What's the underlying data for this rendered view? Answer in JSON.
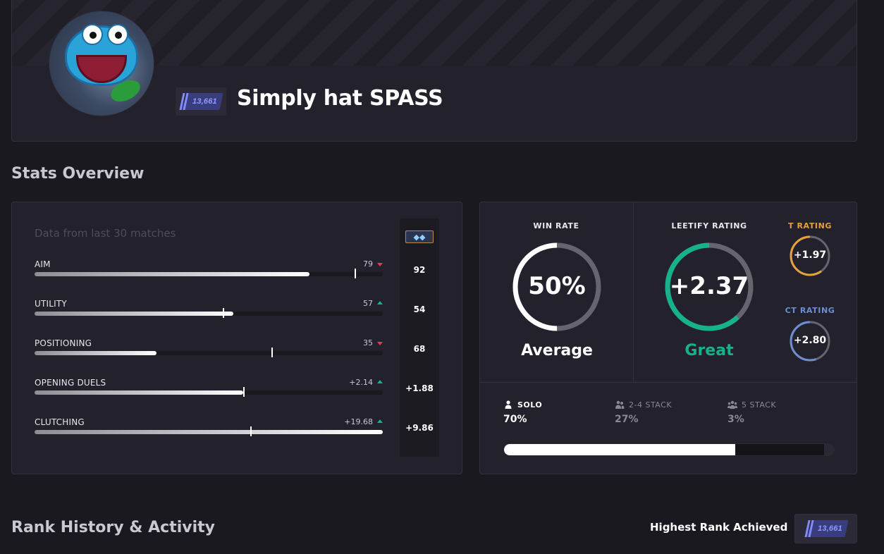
{
  "header": {
    "player_name": "Simply hat SPASS",
    "rank_value": "13,661"
  },
  "stats_overview": {
    "title": "Stats Overview",
    "subtitle": "Data from last 30 matches",
    "skills": [
      {
        "label": "AIM",
        "value": "79",
        "trend": "down",
        "fill": 0.79,
        "benchmark": "92",
        "marker": 0.92
      },
      {
        "label": "UTILITY",
        "value": "57",
        "trend": "up",
        "fill": 0.57,
        "benchmark": "54",
        "marker": 0.54
      },
      {
        "label": "POSITIONING",
        "value": "35",
        "trend": "down",
        "fill": 0.35,
        "benchmark": "68",
        "marker": 0.68
      },
      {
        "label": "OPENING DUELS",
        "value": "+2.14",
        "trend": "up",
        "fill": 0.6,
        "benchmark": "+1.88",
        "marker": 0.6
      },
      {
        "label": "CLUTCHING",
        "value": "+19.68",
        "trend": "up",
        "fill": 1.0,
        "benchmark": "+9.86",
        "marker": 0.62
      }
    ]
  },
  "ratings": {
    "win_rate": {
      "label": "WIN RATE",
      "value": "50%",
      "fraction": 0.5,
      "desc": "Average",
      "color": "#ffffff",
      "desc_color": "#ffffff"
    },
    "leetify": {
      "label": "LEETIFY RATING",
      "value": "+2.37",
      "fraction": 0.62,
      "desc": "Great",
      "color": "#16b38a",
      "desc_color": "#16b38a"
    },
    "t_rating": {
      "label": "T RATING",
      "value": "+1.97",
      "fraction": 0.6,
      "color": "#e5a13e"
    },
    "ct_rating": {
      "label": "CT RATING",
      "value": "+2.80",
      "fraction": 0.55,
      "color": "#6d8fd1"
    }
  },
  "stacks": {
    "solo": {
      "label": "SOLO",
      "value": "70%",
      "fraction": 0.7
    },
    "two_four": {
      "label": "2-4 STACK",
      "value": "27%",
      "fraction": 0.27
    },
    "five": {
      "label": "5 STACK",
      "value": "3%",
      "fraction": 0.03
    }
  },
  "rank_history": {
    "title": "Rank History & Activity",
    "highest_label": "Highest Rank Achieved",
    "highest_value": "13,661"
  }
}
